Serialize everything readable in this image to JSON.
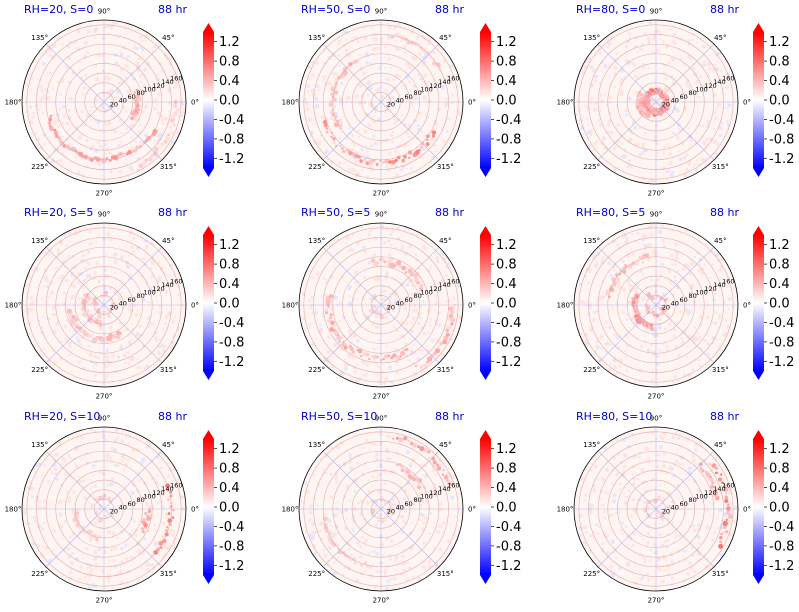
{
  "figure": {
    "time_label": "88 hr",
    "colormap": "bwr",
    "colorbar": {
      "ticks": [
        "1.2",
        "0.8",
        "0.4",
        "0.0",
        "-0.4",
        "-0.8",
        "-1.2"
      ],
      "vmin": -1.4,
      "vmax": 1.4,
      "extend": "both"
    }
  },
  "chart_data": [
    {
      "type": "heatmap",
      "projection": "polar",
      "title": "RH=20, S=0",
      "time": "88 hr",
      "theta_ticks": [
        "0°",
        "45°",
        "90°",
        "135°",
        "180°",
        "225°",
        "270°",
        "315°"
      ],
      "r_ticks": [
        "20",
        "40",
        "60",
        "80",
        "100",
        "120",
        "140",
        "160"
      ],
      "r_max": 170,
      "grid": true
    },
    {
      "type": "heatmap",
      "projection": "polar",
      "title": "RH=50, S=0",
      "time": "88 hr",
      "theta_ticks": [
        "0°",
        "45°",
        "90°",
        "135°",
        "180°",
        "225°",
        "270°",
        "315°"
      ],
      "r_ticks": [
        "20",
        "40",
        "60",
        "80",
        "100",
        "120",
        "140",
        "160"
      ],
      "r_max": 170,
      "grid": true
    },
    {
      "type": "heatmap",
      "projection": "polar",
      "title": "RH=80, S=0",
      "time": "88 hr",
      "theta_ticks": [
        "0°",
        "45°",
        "90°",
        "135°",
        "180°",
        "225°",
        "270°",
        "315°"
      ],
      "r_ticks": [
        "20",
        "40",
        "60",
        "80",
        "100",
        "120",
        "140",
        "160"
      ],
      "r_max": 170,
      "grid": true
    },
    {
      "type": "heatmap",
      "projection": "polar",
      "title": "RH=20, S=5",
      "time": "88 hr",
      "theta_ticks": [
        "0°",
        "45°",
        "90°",
        "135°",
        "180°",
        "225°",
        "270°",
        "315°"
      ],
      "r_ticks": [
        "20",
        "40",
        "60",
        "80",
        "100",
        "120",
        "140",
        "160"
      ],
      "r_max": 170,
      "grid": true
    },
    {
      "type": "heatmap",
      "projection": "polar",
      "title": "RH=50, S=5",
      "time": "88 hr",
      "theta_ticks": [
        "0°",
        "45°",
        "90°",
        "135°",
        "180°",
        "225°",
        "270°",
        "315°"
      ],
      "r_ticks": [
        "20",
        "40",
        "60",
        "80",
        "100",
        "120",
        "140",
        "160"
      ],
      "r_max": 170,
      "grid": true
    },
    {
      "type": "heatmap",
      "projection": "polar",
      "title": "RH=80, S=5",
      "time": "88 hr",
      "theta_ticks": [
        "0°",
        "45°",
        "90°",
        "135°",
        "180°",
        "225°",
        "270°",
        "315°"
      ],
      "r_ticks": [
        "20",
        "40",
        "60",
        "80",
        "100",
        "120",
        "140",
        "160"
      ],
      "r_max": 170,
      "grid": true
    },
    {
      "type": "heatmap",
      "projection": "polar",
      "title": "RH=20, S=10",
      "time": "88 hr",
      "theta_ticks": [
        "0°",
        "45°",
        "90°",
        "135°",
        "180°",
        "225°",
        "270°",
        "315°"
      ],
      "r_ticks": [
        "20",
        "40",
        "60",
        "80",
        "100",
        "120",
        "140",
        "160"
      ],
      "r_max": 170,
      "grid": true
    },
    {
      "type": "heatmap",
      "projection": "polar",
      "title": "RH=50, S=10",
      "time": "88 hr",
      "theta_ticks": [
        "0°",
        "45°",
        "90°",
        "135°",
        "180°",
        "225°",
        "270°",
        "315°"
      ],
      "r_ticks": [
        "20",
        "40",
        "60",
        "80",
        "100",
        "120",
        "140",
        "160"
      ],
      "r_max": 170,
      "grid": true
    },
    {
      "type": "heatmap",
      "projection": "polar",
      "title": "RH=80, S=10",
      "time": "88 hr",
      "theta_ticks": [
        "0°",
        "45°",
        "90°",
        "135°",
        "180°",
        "225°",
        "270°",
        "315°"
      ],
      "r_ticks": [
        "20",
        "40",
        "60",
        "80",
        "100",
        "120",
        "140",
        "160"
      ],
      "r_max": 170,
      "grid": true
    }
  ]
}
